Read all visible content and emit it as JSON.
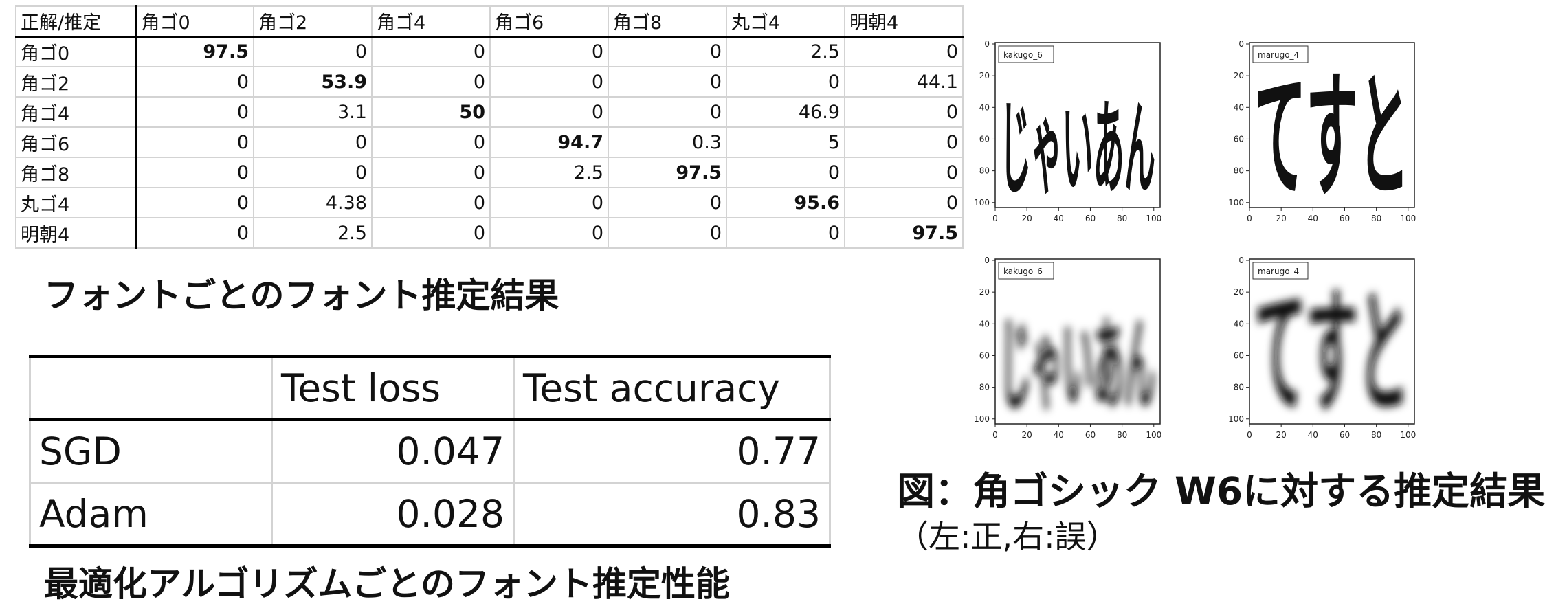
{
  "confusion_matrix": {
    "corner": "正解/推定",
    "columns": [
      "角ゴ0",
      "角ゴ2",
      "角ゴ4",
      "角ゴ6",
      "角ゴ8",
      "丸ゴ4",
      "明朝4"
    ],
    "rows": [
      {
        "label": "角ゴ0",
        "values": [
          "97.5",
          "0",
          "0",
          "0",
          "0",
          "2.5",
          "0"
        ]
      },
      {
        "label": "角ゴ2",
        "values": [
          "0",
          "53.9",
          "0",
          "0",
          "0",
          "0",
          "44.1"
        ]
      },
      {
        "label": "角ゴ4",
        "values": [
          "0",
          "3.1",
          "50",
          "0",
          "0",
          "46.9",
          "0"
        ]
      },
      {
        "label": "角ゴ6",
        "values": [
          "0",
          "0",
          "0",
          "94.7",
          "0.3",
          "5",
          "0"
        ]
      },
      {
        "label": "角ゴ8",
        "values": [
          "0",
          "0",
          "0",
          "2.5",
          "97.5",
          "0",
          "0"
        ]
      },
      {
        "label": "丸ゴ4",
        "values": [
          "0",
          "4.38",
          "0",
          "0",
          "0",
          "95.6",
          "0"
        ]
      },
      {
        "label": "明朝4",
        "values": [
          "0",
          "2.5",
          "0",
          "0",
          "0",
          "0",
          "97.5"
        ]
      }
    ]
  },
  "caption_matrix": "フォントごとのフォント推定結果",
  "optimizer_table": {
    "headers": [
      "",
      "Test loss",
      "Test accuracy"
    ],
    "rows": [
      {
        "name": "SGD",
        "loss": "0.047",
        "accuracy": "0.77"
      },
      {
        "name": "Adam",
        "loss": "0.028",
        "accuracy": "0.83"
      }
    ]
  },
  "caption_optimizer": "最適化アルゴリズムごとのフォント推定性能",
  "figure": {
    "caption_line1": "図：角ゴシック W6に対する推定結果",
    "caption_line2": "（左:正,右:誤）",
    "x_ticks": [
      "0",
      "20",
      "40",
      "60",
      "80",
      "100"
    ],
    "y_ticks": [
      "0",
      "20",
      "40",
      "60",
      "80",
      "100"
    ],
    "panels": [
      {
        "label": "kakugo_6",
        "text": "じゃいあん",
        "style": "sharp"
      },
      {
        "label": "marugo_4",
        "text": "てすと",
        "style": "sharp"
      },
      {
        "label": "kakugo_6",
        "text": "じゃいあん",
        "style": "blur"
      },
      {
        "label": "marugo_4",
        "text": "てすと",
        "style": "blur"
      }
    ]
  }
}
